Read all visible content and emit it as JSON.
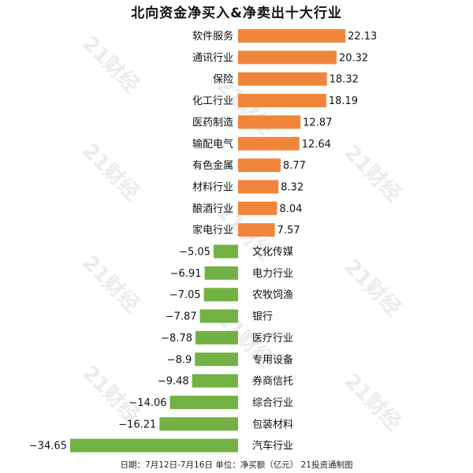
{
  "chart_data": {
    "type": "bar",
    "orientation": "horizontal",
    "title": "北向资金净买入&净卖出十大行业",
    "categories": [
      "软件服务",
      "通讯行业",
      "保险",
      "化工行业",
      "医药制造",
      "输配电气",
      "有色金属",
      "材料行业",
      "酿酒行业",
      "家电行业",
      "文化传媒",
      "电力行业",
      "农牧饲渔",
      "银行",
      "医疗行业",
      "专用设备",
      "券商信托",
      "综合行业",
      "包装材料",
      "汽车行业"
    ],
    "values": [
      22.13,
      20.32,
      18.32,
      18.19,
      12.87,
      12.64,
      8.77,
      8.32,
      8.04,
      7.57,
      -5.05,
      -6.91,
      -7.05,
      -7.87,
      -8.78,
      -8.9,
      -9.48,
      -14.06,
      -16.21,
      -34.65
    ],
    "value_labels": [
      "22.13",
      "20.32",
      "18.32",
      "18.19",
      "12.87",
      "12.64",
      "8.77",
      "8.32",
      "8.04",
      "7.57",
      "−5.05",
      "−6.91",
      "−7.05",
      "−7.87",
      "−8.78",
      "−8.9",
      "−9.48",
      "−14.06",
      "−16.21",
      "−34.65"
    ],
    "colors": {
      "positive": "#f0843a",
      "negative": "#72b244"
    },
    "xlim": [
      -34.65,
      22.13
    ],
    "grid": false,
    "legend": "none"
  },
  "footer": "日期：7月12日-7月16日 单位：净买额（亿元） 21投资通制图",
  "watermark": "21财经"
}
